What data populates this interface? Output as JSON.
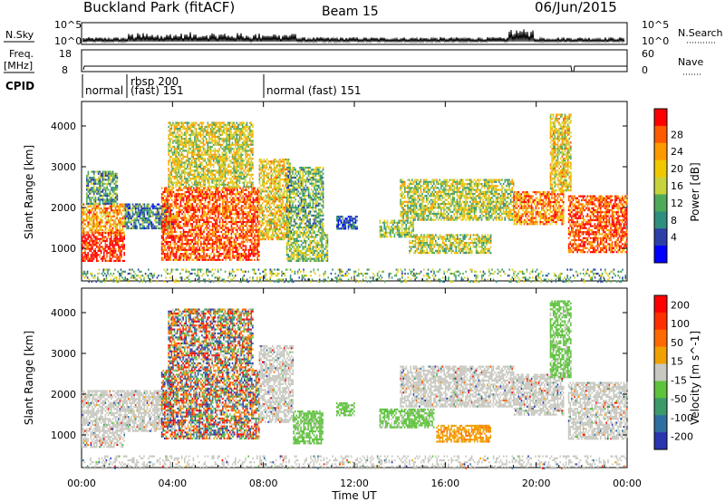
{
  "header": {
    "station": "Buckland Park (fitACF)",
    "beam": "Beam 15",
    "date": "06/Jun/2015"
  },
  "top_panel": {
    "nsky_label": "N.Sky",
    "nsearch_label": "N.Search",
    "freq_label_1": "Freq.",
    "freq_label_2": "[MHz]",
    "nave_label": "Nave",
    "cpid_label": "CPID",
    "left_ticks_noise": [
      "10^5",
      "10^0"
    ],
    "right_ticks_noise": [
      "10^5",
      "10^0"
    ],
    "left_ticks_freq": [
      "18",
      "8"
    ],
    "right_ticks_nave": [
      "60",
      "0"
    ],
    "cpid_segments": [
      {
        "label": "normal",
        "start_h": 0,
        "end_h": 1.75
      },
      {
        "label": "rbsp 200",
        "label2": "(fast) 151",
        "start_h": 1.75,
        "end_h": 8.0
      },
      {
        "label": "normal (fast) 151",
        "start_h": 8.0,
        "end_h": 24.0
      }
    ]
  },
  "chart_data": [
    {
      "type": "heatmap",
      "panel": "power",
      "ylabel": "Slant Range [km]",
      "yticks": [
        "1000",
        "2000",
        "3000",
        "4000"
      ],
      "ylim": [
        200,
        4600
      ],
      "xlim_hours": [
        0,
        24
      ],
      "colorbar_label": "Power [dB]",
      "colorbar_ticks": [
        "4",
        "8",
        "12",
        "16",
        "20",
        "24",
        "28"
      ],
      "colorbar_colors": [
        "#0000ff",
        "#2b3fa6",
        "#2f8f7f",
        "#4fa95a",
        "#c8d23c",
        "#f0c800",
        "#ff9900",
        "#ff5a00",
        "#ff0000"
      ],
      "regions": [
        {
          "t0": 0.0,
          "t1": 1.9,
          "r0": 700,
          "r1": 1400,
          "level": 0.95
        },
        {
          "t0": 0.0,
          "t1": 1.9,
          "r0": 1400,
          "r1": 2100,
          "level": 0.7
        },
        {
          "t0": 0.2,
          "t1": 1.6,
          "r0": 2100,
          "r1": 2900,
          "level": 0.35
        },
        {
          "t0": 1.9,
          "t1": 4.0,
          "r0": 1500,
          "r1": 2100,
          "level": 0.3
        },
        {
          "t0": 3.5,
          "t1": 7.8,
          "r0": 700,
          "r1": 2500,
          "level": 0.85
        },
        {
          "t0": 3.8,
          "t1": 7.5,
          "r0": 2500,
          "r1": 4100,
          "level": 0.55
        },
        {
          "t0": 7.8,
          "t1": 9.2,
          "r0": 1200,
          "r1": 3200,
          "level": 0.6
        },
        {
          "t0": 9.0,
          "t1": 10.8,
          "r0": 700,
          "r1": 1400,
          "level": 0.45
        },
        {
          "t0": 9.0,
          "t1": 10.6,
          "r0": 1400,
          "r1": 3000,
          "level": 0.4
        },
        {
          "t0": 11.2,
          "t1": 12.1,
          "r0": 1500,
          "r1": 1800,
          "level": 0.2
        },
        {
          "t0": 13.1,
          "t1": 14.6,
          "r0": 1300,
          "r1": 1700,
          "level": 0.45
        },
        {
          "t0": 14.4,
          "t1": 18.0,
          "r0": 900,
          "r1": 1350,
          "level": 0.5
        },
        {
          "t0": 14.0,
          "t1": 19.0,
          "r0": 1700,
          "r1": 2700,
          "level": 0.5
        },
        {
          "t0": 19.0,
          "t1": 21.2,
          "r0": 1600,
          "r1": 2400,
          "level": 0.75
        },
        {
          "t0": 20.6,
          "t1": 21.5,
          "r0": 2400,
          "r1": 4300,
          "level": 0.6
        },
        {
          "t0": 21.4,
          "t1": 24.0,
          "r0": 900,
          "r1": 2300,
          "level": 0.85
        }
      ]
    },
    {
      "type": "heatmap",
      "panel": "velocity",
      "ylabel": "Slant Range [km]",
      "yticks": [
        "1000",
        "2000",
        "3000",
        "4000"
      ],
      "ylim": [
        200,
        4600
      ],
      "xlim_hours": [
        0,
        24
      ],
      "xlabel": "Time UT",
      "xticks": [
        "00:00",
        "04:00",
        "08:00",
        "12:00",
        "16:00",
        "20:00",
        "00:00"
      ],
      "colorbar_label": "Velocity [m s^-1]",
      "colorbar_ticks": [
        "200",
        "100",
        "50",
        "15",
        "-15",
        "-50",
        "-100",
        "-200"
      ],
      "colorbar_colors": [
        "#2a35b0",
        "#2e6fa0",
        "#3c9a6a",
        "#5ec23c",
        "#c8c8c0",
        "#f0a000",
        "#ff6a00",
        "#ff3000",
        "#ff0000"
      ],
      "regions": [
        {
          "t0": 0.0,
          "t1": 1.9,
          "r0": 700,
          "r1": 2100,
          "kind": "gray"
        },
        {
          "t0": 1.9,
          "t1": 4.0,
          "r0": 1100,
          "r1": 2100,
          "kind": "gray"
        },
        {
          "t0": 3.5,
          "t1": 7.8,
          "r0": 900,
          "r1": 2600,
          "kind": "mixed"
        },
        {
          "t0": 3.8,
          "t1": 7.5,
          "r0": 2600,
          "r1": 4100,
          "kind": "mixed"
        },
        {
          "t0": 7.8,
          "t1": 9.3,
          "r0": 1300,
          "r1": 3200,
          "kind": "gray"
        },
        {
          "t0": 11.2,
          "t1": 12.0,
          "r0": 1500,
          "r1": 1800,
          "kind": "green"
        },
        {
          "t0": 9.3,
          "t1": 10.6,
          "r0": 800,
          "r1": 1600,
          "kind": "green"
        },
        {
          "t0": 13.1,
          "t1": 15.5,
          "r0": 1200,
          "r1": 1650,
          "kind": "green"
        },
        {
          "t0": 15.6,
          "t1": 18.0,
          "r0": 850,
          "r1": 1250,
          "kind": "orange"
        },
        {
          "t0": 14.0,
          "t1": 19.0,
          "r0": 1700,
          "r1": 2700,
          "kind": "gray"
        },
        {
          "t0": 19.0,
          "t1": 21.2,
          "r0": 1500,
          "r1": 2500,
          "kind": "gray"
        },
        {
          "t0": 20.6,
          "t1": 21.5,
          "r0": 2400,
          "r1": 4300,
          "kind": "green"
        },
        {
          "t0": 21.4,
          "t1": 24.0,
          "r0": 900,
          "r1": 2300,
          "kind": "gray"
        }
      ]
    }
  ],
  "ground_scatter_band": {
    "r0": 200,
    "r1": 500
  }
}
